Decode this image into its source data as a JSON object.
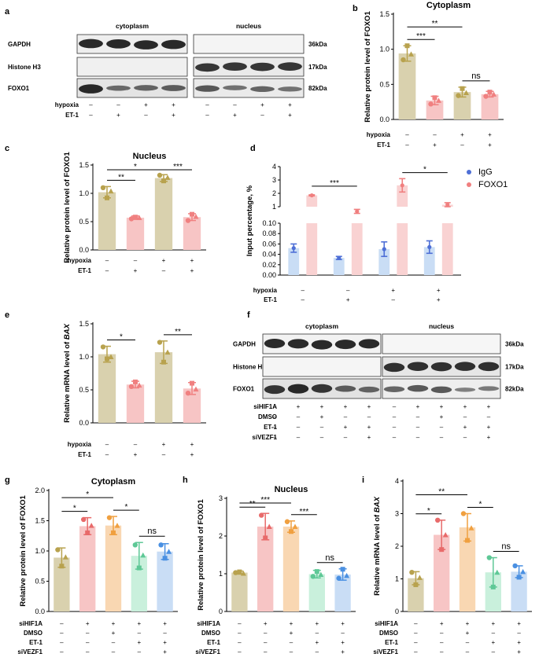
{
  "panels": {
    "a": {
      "letter": "a",
      "header_left": "cytoplasm",
      "header_right": "nucleus",
      "rows": [
        "GAPDH",
        "Histone H3",
        "FOXO1"
      ],
      "kda": [
        "36kDa",
        "17kDa",
        "82kDa"
      ],
      "conditions": [
        {
          "label": "hypoxia",
          "signs": [
            "–",
            "–",
            "+",
            "+",
            "–",
            "–",
            "+",
            "+"
          ]
        },
        {
          "label": "ET-1",
          "signs": [
            "–",
            "+",
            "–",
            "+",
            "–",
            "+",
            "–",
            "+"
          ]
        }
      ]
    },
    "f": {
      "letter": "f",
      "header_left": "cytoplasm",
      "header_right": "nucleus",
      "rows": [
        "GAPDH",
        "Histone H3",
        "FOXO1"
      ],
      "kda": [
        "36kDa",
        "17kDa",
        "82kDa"
      ],
      "conditions": [
        {
          "label": "siHIF1A",
          "signs": [
            "–",
            "+",
            "+",
            "+",
            "+",
            "–",
            "+",
            "+",
            "+",
            "+"
          ]
        },
        {
          "label": "DMSO",
          "signs": [
            "–",
            "–",
            "+",
            "–",
            "–",
            "–",
            "–",
            "+",
            "–",
            "–"
          ]
        },
        {
          "label": "ET-1",
          "signs": [
            "–",
            "–",
            "–",
            "+",
            "+",
            "–",
            "–",
            "–",
            "+",
            "+"
          ]
        },
        {
          "label": "siVEZF1",
          "signs": [
            "–",
            "–",
            "–",
            "–",
            "+",
            "–",
            "–",
            "–",
            "–",
            "+"
          ]
        }
      ]
    }
  },
  "chart_data": [
    {
      "id": "b",
      "letter": "b",
      "type": "bar",
      "title": "Cytoplasm",
      "ylabel": "Relative protein level of FOXO1",
      "ylim": [
        0,
        1.5
      ],
      "yticks": [
        "0.0",
        "0.5",
        "1.0",
        "1.5"
      ],
      "ytick_values": [
        0,
        0.5,
        1.0,
        1.5
      ],
      "values": [
        0.94,
        0.27,
        0.39,
        0.36
      ],
      "errors": [
        0.11,
        0.06,
        0.07,
        0.04
      ],
      "points": [
        [
          0.85,
          1.05,
          0.93
        ],
        [
          0.22,
          0.31,
          0.27
        ],
        [
          0.34,
          0.44,
          0.38
        ],
        [
          0.33,
          0.39,
          0.36
        ]
      ],
      "colors": [
        "#d9d1ae",
        "#f7c5c5",
        "#d9d1ae",
        "#f7c5c5"
      ],
      "dot_colors": [
        "#b8a24e",
        "#f08080",
        "#b8a24e",
        "#f08080"
      ],
      "significance": [
        {
          "from": 0,
          "to": 1,
          "label": "***",
          "level": 0
        },
        {
          "from": 0,
          "to": 2,
          "label": "**",
          "level": 1
        },
        {
          "from": 2,
          "to": 3,
          "label": "ns",
          "level": 0
        }
      ],
      "conditions": [
        {
          "label": "hypoxia",
          "signs": [
            "–",
            "–",
            "+",
            "+"
          ]
        },
        {
          "label": "ET-1",
          "signs": [
            "–",
            "+",
            "–",
            "+"
          ]
        }
      ]
    },
    {
      "id": "c",
      "letter": "c",
      "type": "bar",
      "title": "Nucleus",
      "ylabel": "Relative protein level of FOXO1",
      "ylim": [
        0,
        1.5
      ],
      "yticks": [
        "0.0",
        "0.5",
        "1.0",
        "1.5"
      ],
      "ytick_values": [
        0,
        0.5,
        1.0,
        1.5
      ],
      "values": [
        1.02,
        0.57,
        1.27,
        0.58
      ],
      "errors": [
        0.1,
        0.03,
        0.06,
        0.06
      ],
      "points": [
        [
          1.1,
          0.92,
          1.04
        ],
        [
          0.55,
          0.58,
          0.57
        ],
        [
          1.32,
          1.22,
          1.28
        ],
        [
          0.52,
          0.63,
          0.59
        ]
      ],
      "colors": [
        "#d9d1ae",
        "#f7c5c5",
        "#d9d1ae",
        "#f7c5c5"
      ],
      "dot_colors": [
        "#b8a24e",
        "#f08080",
        "#b8a24e",
        "#f08080"
      ],
      "significance": [
        {
          "from": 0,
          "to": 1,
          "label": "**",
          "level": 0
        },
        {
          "from": 0,
          "to": 2,
          "label": "*",
          "level": 1
        },
        {
          "from": 2,
          "to": 3,
          "label": "***",
          "level": 1
        }
      ],
      "conditions": [
        {
          "label": "hypoxia",
          "signs": [
            "–",
            "–",
            "+",
            "+"
          ]
        },
        {
          "label": "ET-1",
          "signs": [
            "–",
            "+",
            "–",
            "+"
          ]
        }
      ]
    },
    {
      "id": "d",
      "letter": "d",
      "type": "bar",
      "title": "",
      "ylabel": "Input percentage, %",
      "axis_break": true,
      "lower_ylim": [
        0,
        0.1
      ],
      "lower_yticks": [
        "0.00",
        "0.02",
        "0.04",
        "0.06",
        "0.08",
        "0.10"
      ],
      "lower_ytick_values": [
        0,
        0.02,
        0.04,
        0.06,
        0.08,
        0.1
      ],
      "upper_ylim": [
        1,
        4
      ],
      "upper_yticks": [
        "1",
        "2",
        "3",
        "4"
      ],
      "upper_ytick_values": [
        1,
        2,
        3,
        4
      ],
      "series": [
        {
          "name": "IgG",
          "values": [
            0.052,
            0.033,
            0.05,
            0.054
          ],
          "errors": [
            0.008,
            0.003,
            0.014,
            0.012
          ],
          "color": "#c9ddf5",
          "dot_color": "#4e6fd6"
        },
        {
          "name": "FOXO1",
          "values": [
            1.85,
            0.65,
            2.6,
            1.15
          ],
          "errors": [
            0.04,
            0.15,
            0.5,
            0.15
          ],
          "color": "#f9d2d2",
          "dot_color": "#f07f7f"
        }
      ],
      "significance": [
        {
          "from": 0,
          "to": 1,
          "label": "***"
        },
        {
          "from": 2,
          "to": 3,
          "label": "*"
        }
      ],
      "conditions": [
        {
          "label": "hypoxia",
          "signs": [
            "–",
            "–",
            "+",
            "+"
          ]
        },
        {
          "label": "ET-1",
          "signs": [
            "–",
            "+",
            "–",
            "+"
          ]
        }
      ]
    },
    {
      "id": "e",
      "letter": "e",
      "type": "bar",
      "title": "",
      "ylabel_prefix": "Relative mRNA level of ",
      "ylabel_gene": "BAX",
      "ylim": [
        0,
        1.5
      ],
      "yticks": [
        "0.0",
        "0.5",
        "1.0",
        "1.5"
      ],
      "ytick_values": [
        0,
        0.5,
        1.0,
        1.5
      ],
      "values": [
        1.04,
        0.58,
        1.07,
        0.52
      ],
      "errors": [
        0.12,
        0.05,
        0.17,
        0.09
      ],
      "points": [
        [
          1.15,
          0.97,
          1.0
        ],
        [
          0.55,
          0.62,
          0.57
        ],
        [
          1.22,
          0.92,
          1.07
        ],
        [
          0.45,
          0.6,
          0.51
        ]
      ],
      "colors": [
        "#d9d1ae",
        "#f7c5c5",
        "#d9d1ae",
        "#f7c5c5"
      ],
      "dot_colors": [
        "#b8a24e",
        "#f08080",
        "#b8a24e",
        "#f08080"
      ],
      "significance": [
        {
          "from": 0,
          "to": 1,
          "label": "*",
          "level": 0
        },
        {
          "from": 2,
          "to": 3,
          "label": "**",
          "level": 0
        }
      ],
      "conditions": [
        {
          "label": "hypoxia",
          "signs": [
            "–",
            "–",
            "+",
            "+"
          ]
        },
        {
          "label": "ET-1",
          "signs": [
            "–",
            "+",
            "–",
            "+"
          ]
        }
      ]
    },
    {
      "id": "g",
      "letter": "g",
      "type": "bar",
      "title": "Cytoplasm",
      "ylabel": "Relative protein level of FOXO1",
      "ylim": [
        0,
        2.0
      ],
      "yticks": [
        "0.0",
        "0.5",
        "1.0",
        "1.5",
        "2.0"
      ],
      "ytick_values": [
        0,
        0.5,
        1.0,
        1.5,
        2.0
      ],
      "values": [
        0.89,
        1.41,
        1.42,
        0.92,
        0.99
      ],
      "errors": [
        0.16,
        0.14,
        0.15,
        0.22,
        0.13
      ],
      "points": [
        [
          1.02,
          0.75,
          0.9
        ],
        [
          1.52,
          1.3,
          1.42
        ],
        [
          1.55,
          1.3,
          1.42
        ],
        [
          1.1,
          0.72,
          0.93
        ],
        [
          1.1,
          0.88,
          0.99
        ]
      ],
      "colors": [
        "#d9d1ae",
        "#f7c5c5",
        "#f9d7b2",
        "#c9f0dc",
        "#c9ddf5"
      ],
      "dot_colors": [
        "#b8a24e",
        "#e86a6a",
        "#f0a040",
        "#5ec896",
        "#4a90e2"
      ],
      "significance": [
        {
          "from": 0,
          "to": 1,
          "label": "*",
          "level": 0
        },
        {
          "from": 0,
          "to": 2,
          "label": "*",
          "level": 1
        },
        {
          "from": 2,
          "to": 3,
          "label": "*",
          "level": 0
        },
        {
          "from": 3,
          "to": 4,
          "label": "ns",
          "level": 0
        }
      ],
      "conditions": [
        {
          "label": "siHIF1A",
          "signs": [
            "–",
            "+",
            "+",
            "+",
            "+"
          ]
        },
        {
          "label": "DMSO",
          "signs": [
            "–",
            "–",
            "+",
            "–",
            "–"
          ]
        },
        {
          "label": "ET-1",
          "signs": [
            "–",
            "–",
            "–",
            "+",
            "+"
          ]
        },
        {
          "label": "siVEZF1",
          "signs": [
            "–",
            "–",
            "–",
            "–",
            "+"
          ]
        }
      ]
    },
    {
      "id": "h",
      "letter": "h",
      "type": "bar",
      "title": "Nucleus",
      "ylabel": "Relative protein level of FOXO1",
      "ylim": [
        0,
        3
      ],
      "yticks": [
        "0",
        "1",
        "2",
        "3"
      ],
      "ytick_values": [
        0,
        1,
        2,
        3
      ],
      "values": [
        1.03,
        2.25,
        2.25,
        0.99,
        0.98
      ],
      "errors": [
        0.04,
        0.35,
        0.15,
        0.1,
        0.15
      ],
      "points": [
        [
          1.03,
          1.05,
          1.01
        ],
        [
          2.55,
          1.95,
          2.25
        ],
        [
          2.38,
          2.12,
          2.25
        ],
        [
          0.93,
          1.06,
          0.98
        ],
        [
          0.88,
          1.12,
          0.95
        ]
      ],
      "colors": [
        "#d9d1ae",
        "#f7c5c5",
        "#f9d7b2",
        "#c9f0dc",
        "#c9ddf5"
      ],
      "dot_colors": [
        "#b8a24e",
        "#e86a6a",
        "#f0a040",
        "#5ec896",
        "#4a90e2"
      ],
      "significance": [
        {
          "from": 0,
          "to": 1,
          "label": "**",
          "level": 0
        },
        {
          "from": 0,
          "to": 2,
          "label": "***",
          "level": 1
        },
        {
          "from": 2,
          "to": 3,
          "label": "***",
          "level": 0
        },
        {
          "from": 3,
          "to": 4,
          "label": "ns",
          "level": 0
        }
      ],
      "conditions": [
        {
          "label": "siHIF1A",
          "signs": [
            "–",
            "+",
            "+",
            "+",
            "+"
          ]
        },
        {
          "label": "DMSO",
          "signs": [
            "–",
            "–",
            "+",
            "–",
            "–"
          ]
        },
        {
          "label": "ET-1",
          "signs": [
            "–",
            "–",
            "–",
            "+",
            "+"
          ]
        },
        {
          "label": "siVEZF1",
          "signs": [
            "–",
            "–",
            "–",
            "–",
            "+"
          ]
        }
      ]
    },
    {
      "id": "i",
      "letter": "i",
      "type": "bar",
      "title": "",
      "ylabel_prefix": "Relative mRNA level of ",
      "ylabel_gene": "BAX",
      "ylim": [
        0,
        4
      ],
      "yticks": [
        "0",
        "1",
        "2",
        "3",
        "4"
      ],
      "ytick_values": [
        0,
        1,
        2,
        3,
        4
      ],
      "values": [
        1.02,
        2.35,
        2.58,
        1.2,
        1.22
      ],
      "errors": [
        0.2,
        0.45,
        0.42,
        0.45,
        0.18
      ],
      "points": [
        [
          1.2,
          0.82,
          1.04
        ],
        [
          2.8,
          1.9,
          2.35
        ],
        [
          3.0,
          2.18,
          2.56
        ],
        [
          1.65,
          0.75,
          1.2
        ],
        [
          1.4,
          1.05,
          1.22
        ]
      ],
      "colors": [
        "#d9d1ae",
        "#f7c5c5",
        "#f9d7b2",
        "#c9f0dc",
        "#c9ddf5"
      ],
      "dot_colors": [
        "#b8a24e",
        "#e86a6a",
        "#f0a040",
        "#5ec896",
        "#4a90e2"
      ],
      "significance": [
        {
          "from": 0,
          "to": 1,
          "label": "*",
          "level": 0
        },
        {
          "from": 0,
          "to": 2,
          "label": "**",
          "level": 1
        },
        {
          "from": 2,
          "to": 3,
          "label": "*",
          "level": 0
        },
        {
          "from": 3,
          "to": 4,
          "label": "ns",
          "level": 0
        }
      ],
      "conditions": [
        {
          "label": "siHIF1A",
          "signs": [
            "–",
            "+",
            "+",
            "+",
            "+"
          ]
        },
        {
          "label": "DMSO",
          "signs": [
            "–",
            "–",
            "+",
            "–",
            "–"
          ]
        },
        {
          "label": "ET-1",
          "signs": [
            "–",
            "–",
            "–",
            "+",
            "+"
          ]
        },
        {
          "label": "siVEZF1",
          "signs": [
            "–",
            "–",
            "–",
            "–",
            "+"
          ]
        }
      ]
    }
  ]
}
